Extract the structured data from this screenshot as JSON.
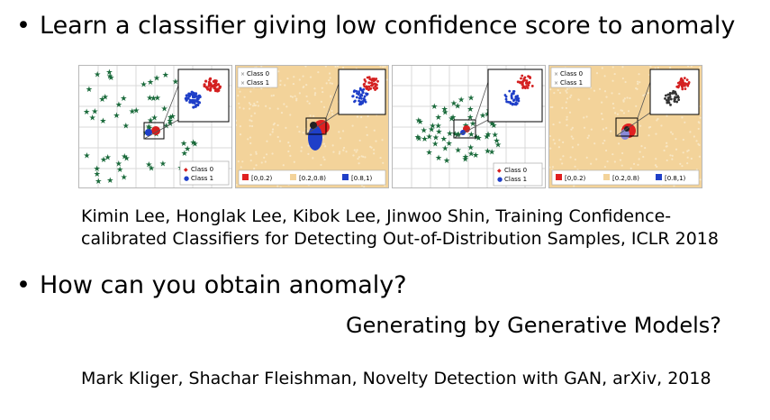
{
  "bullets": [
    {
      "symbol": "•",
      "text": "Learn a classifier giving low confidence score to anomaly"
    },
    {
      "symbol": "•",
      "text": "How can you obtain anomaly?"
    }
  ],
  "reference1": {
    "line1": "Kimin Lee, Honglak Lee, Kibok Lee, Jinwoo Shin, Training Confidence-",
    "line2": "calibrated Classifiers for Detecting Out-of-Distribution Samples, ICLR 2018"
  },
  "generating_text": "Generating by Generative Models?",
  "reference2": "Mark Kliger, Shachar Fleishman, Novelty Detection with GAN, arXiv, 2018",
  "figure": {
    "legend_classes": [
      "Class 0",
      "Class 1"
    ],
    "legend_bins": [
      "[0,0.2)",
      "[0.2,0.8)",
      "[0.8,1)"
    ],
    "colors": {
      "class0": "#d42020",
      "class1": "#1f3fc8",
      "ood": "#1b6b3c",
      "bin_low": "#e02020",
      "bin_mid": "#f3d39a",
      "bin_high": "#1f3fc8"
    }
  }
}
